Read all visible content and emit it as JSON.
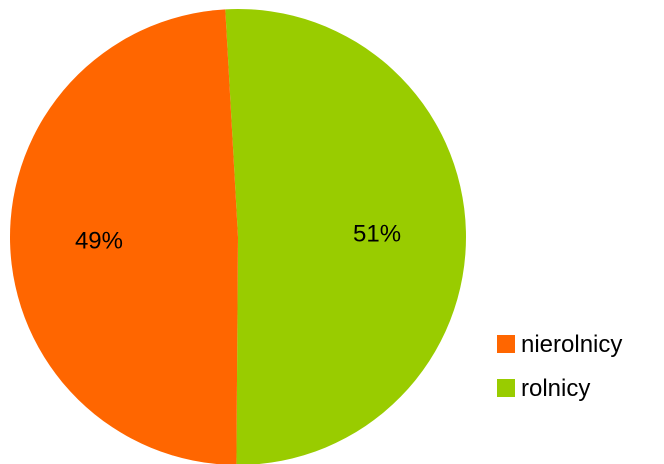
{
  "chart_data": {
    "type": "pie",
    "title": "",
    "slices": [
      {
        "name": "nierolnicy",
        "value": 49,
        "label": "49%",
        "color": "#ff6600"
      },
      {
        "name": "rolnicy",
        "value": 51,
        "label": "51%",
        "color": "#99cc00"
      }
    ],
    "legend_position": "bottom-right"
  }
}
